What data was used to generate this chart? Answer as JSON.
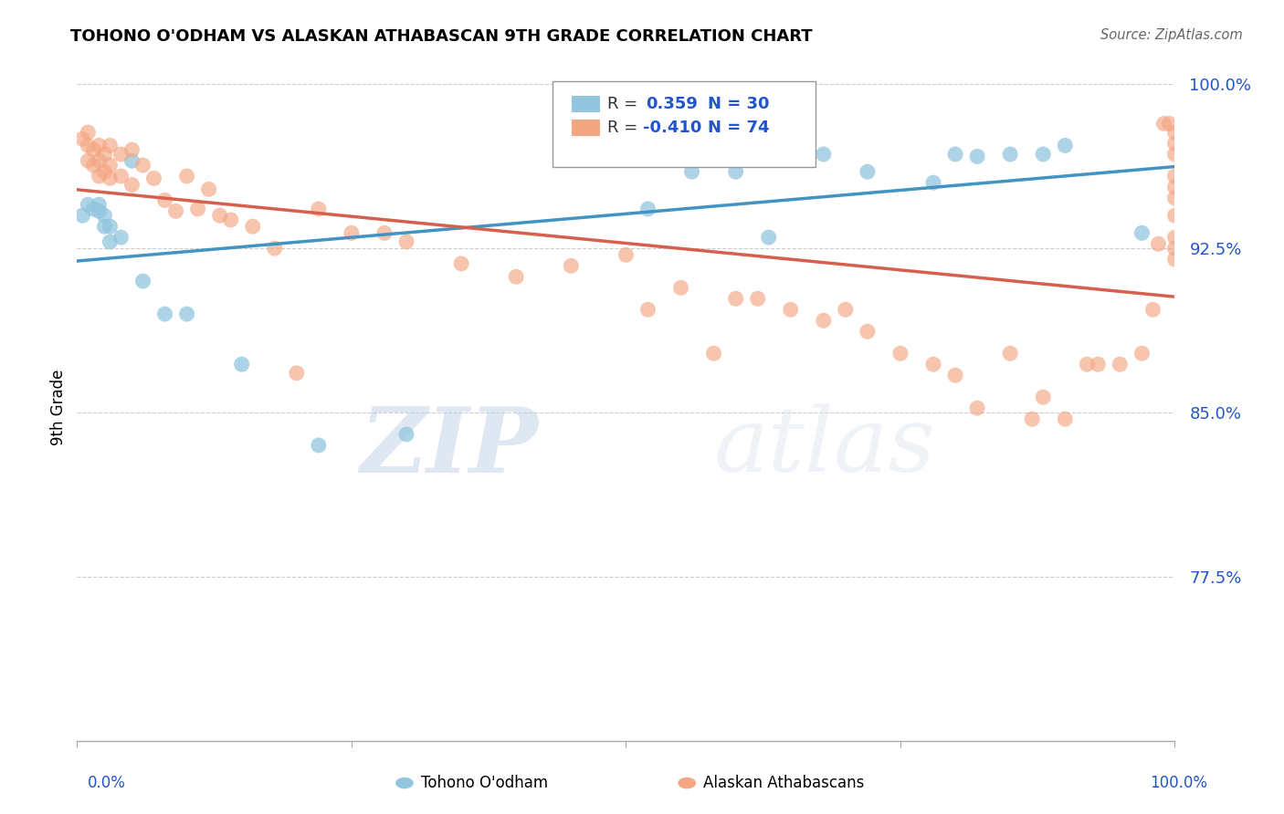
{
  "title": "TOHONO O'ODHAM VS ALASKAN ATHABASCAN 9TH GRADE CORRELATION CHART",
  "source": "Source: ZipAtlas.com",
  "ylabel": "9th Grade",
  "blue_color": "#92c5de",
  "blue_line_color": "#4393c3",
  "pink_color": "#f4a582",
  "pink_line_color": "#d6604d",
  "watermark_zip": "ZIP",
  "watermark_atlas": "atlas",
  "xlim": [
    0.0,
    1.0
  ],
  "ylim": [
    0.7,
    1.005
  ],
  "yticks": [
    0.775,
    0.85,
    0.925,
    1.0
  ],
  "ytick_labels": [
    "77.5%",
    "85.0%",
    "92.5%",
    "100.0%"
  ],
  "blue_x": [
    0.005,
    0.01,
    0.015,
    0.02,
    0.02,
    0.025,
    0.025,
    0.03,
    0.03,
    0.04,
    0.05,
    0.06,
    0.08,
    0.1,
    0.15,
    0.22,
    0.3,
    0.52,
    0.56,
    0.6,
    0.63,
    0.68,
    0.72,
    0.78,
    0.8,
    0.82,
    0.85,
    0.88,
    0.9,
    0.97
  ],
  "blue_y": [
    0.94,
    0.945,
    0.943,
    0.945,
    0.942,
    0.94,
    0.935,
    0.935,
    0.928,
    0.93,
    0.965,
    0.91,
    0.895,
    0.895,
    0.872,
    0.835,
    0.84,
    0.943,
    0.96,
    0.96,
    0.93,
    0.968,
    0.96,
    0.955,
    0.968,
    0.967,
    0.968,
    0.968,
    0.972,
    0.932
  ],
  "pink_x": [
    0.005,
    0.01,
    0.01,
    0.01,
    0.015,
    0.015,
    0.02,
    0.02,
    0.02,
    0.025,
    0.025,
    0.03,
    0.03,
    0.03,
    0.04,
    0.04,
    0.05,
    0.05,
    0.06,
    0.07,
    0.08,
    0.09,
    0.1,
    0.11,
    0.12,
    0.13,
    0.14,
    0.16,
    0.18,
    0.2,
    0.22,
    0.25,
    0.28,
    0.3,
    0.35,
    0.4,
    0.45,
    0.5,
    0.52,
    0.55,
    0.58,
    0.6,
    0.62,
    0.65,
    0.68,
    0.7,
    0.72,
    0.75,
    0.78,
    0.8,
    0.82,
    0.85,
    0.87,
    0.88,
    0.9,
    0.92,
    0.93,
    0.95,
    0.97,
    0.98,
    0.985,
    0.99,
    0.995,
    1.0,
    1.0,
    1.0,
    1.0,
    1.0,
    1.0,
    1.0,
    1.0,
    1.0,
    1.0
  ],
  "pink_y": [
    0.975,
    0.978,
    0.972,
    0.965,
    0.97,
    0.963,
    0.972,
    0.965,
    0.958,
    0.968,
    0.96,
    0.972,
    0.963,
    0.957,
    0.968,
    0.958,
    0.97,
    0.954,
    0.963,
    0.957,
    0.947,
    0.942,
    0.958,
    0.943,
    0.952,
    0.94,
    0.938,
    0.935,
    0.925,
    0.868,
    0.943,
    0.932,
    0.932,
    0.928,
    0.918,
    0.912,
    0.917,
    0.922,
    0.897,
    0.907,
    0.877,
    0.902,
    0.902,
    0.897,
    0.892,
    0.897,
    0.887,
    0.877,
    0.872,
    0.867,
    0.852,
    0.877,
    0.847,
    0.857,
    0.847,
    0.872,
    0.872,
    0.872,
    0.877,
    0.897,
    0.927,
    0.982,
    0.982,
    0.978,
    0.973,
    0.968,
    0.958,
    0.953,
    0.948,
    0.94,
    0.93,
    0.925,
    0.92
  ]
}
